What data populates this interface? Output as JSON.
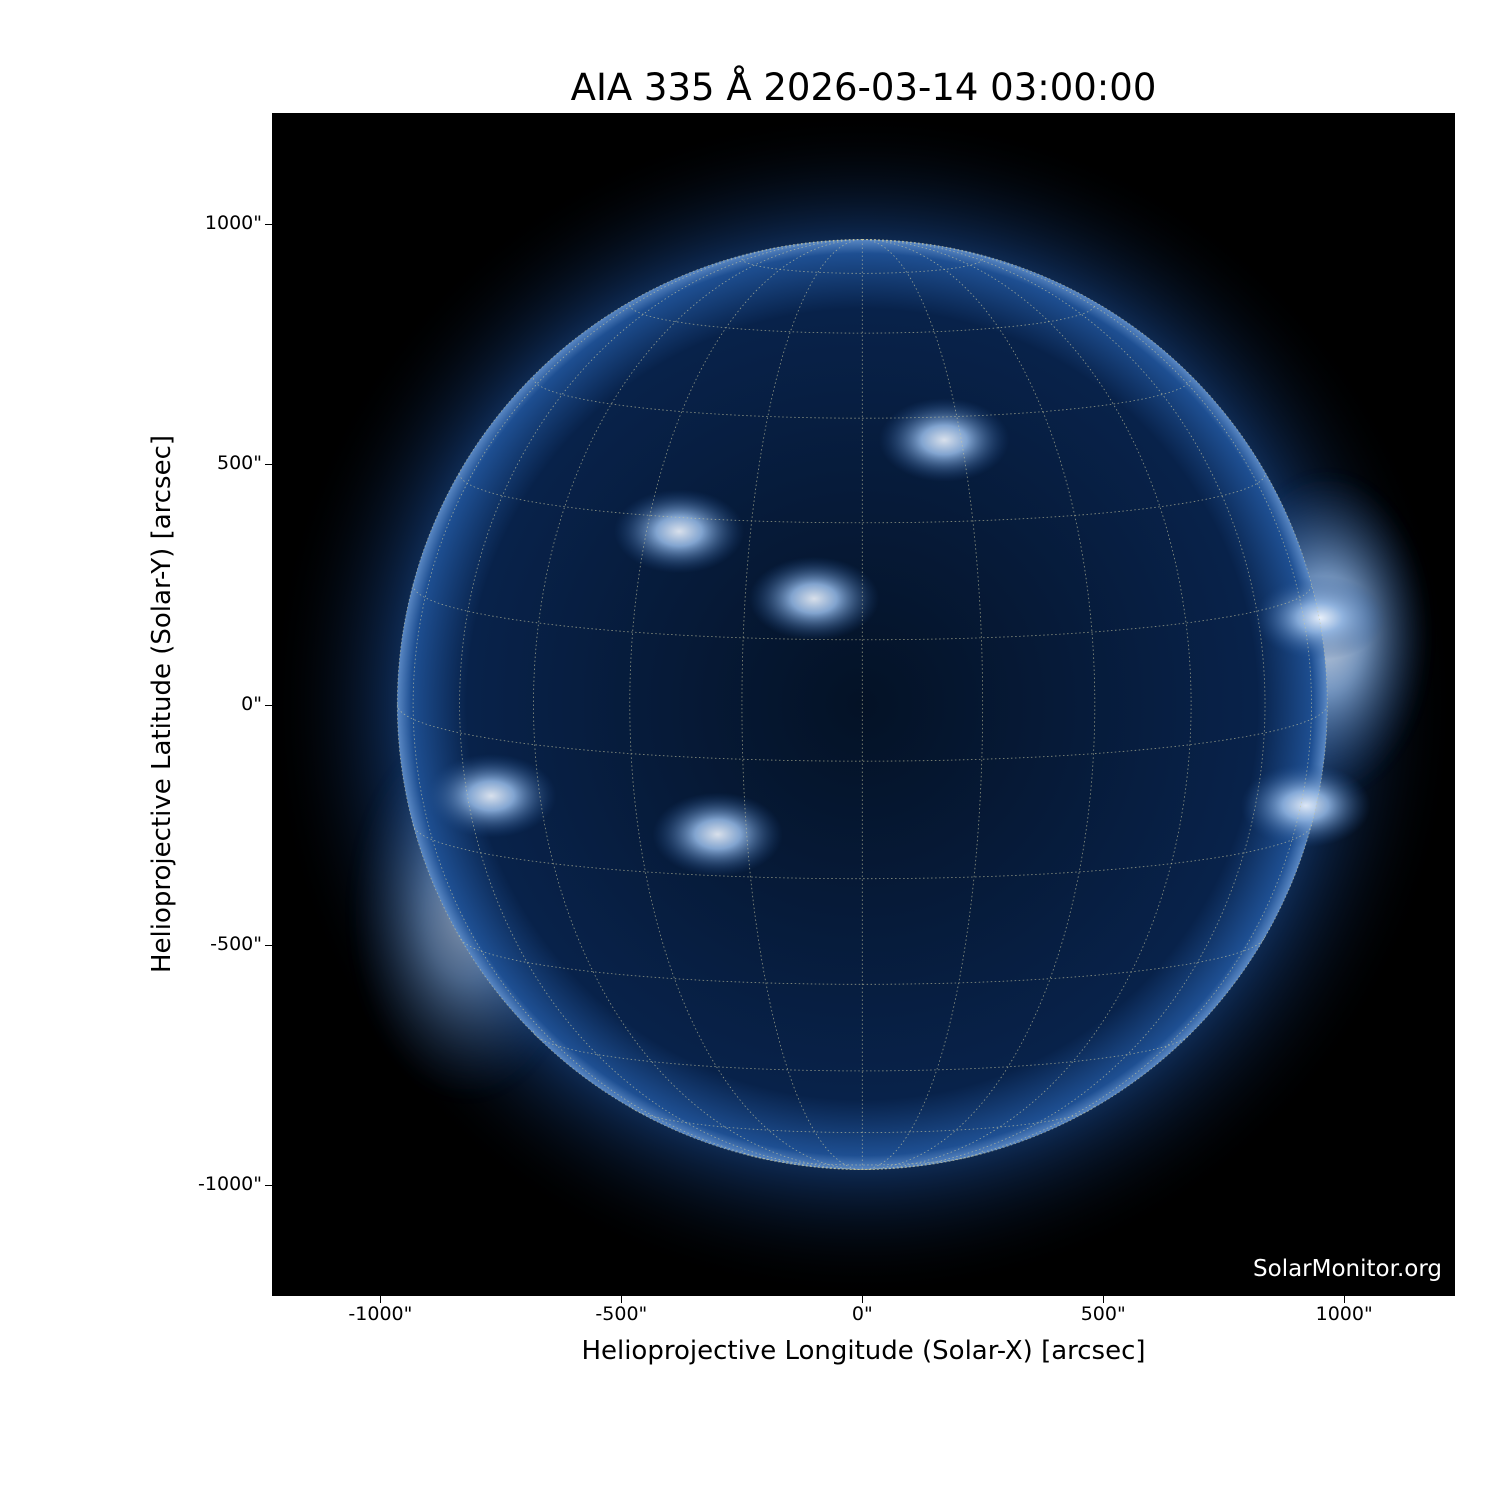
{
  "chart_data": {
    "type": "image",
    "title": "AIA 335 Å 2026-03-14 03:00:00",
    "xlabel": "Helioprojective Longitude (Solar-X) [arcsec]",
    "ylabel": "Helioprojective Latitude (Solar-Y) [arcsec]",
    "xlim": [
      -1225,
      1230
    ],
    "ylim": [
      -1230,
      1230
    ],
    "xticks": [
      -1000,
      -500,
      0,
      500,
      1000
    ],
    "xtick_labels": [
      "-1000\"",
      "-500\"",
      "0\"",
      "500\"",
      "1000\""
    ],
    "yticks": [
      1000,
      500,
      0,
      -500,
      -1000
    ],
    "ytick_labels": [
      "1000\"",
      "500\"",
      "0\"",
      "-500\"",
      "-1000\""
    ],
    "solar_radius_arcsec": 965,
    "grid": "heliographic, 15° spacing, dotted",
    "colormap": "sdoaia335",
    "colors": {
      "background": "#000000",
      "disk": "#0a2a5c",
      "bright": "#e8f2ff",
      "grid": "#c8c8a0"
    },
    "bright_regions_arcsec": [
      {
        "x": -380,
        "y": 360
      },
      {
        "x": -100,
        "y": 220
      },
      {
        "x": 170,
        "y": 550
      },
      {
        "x": -770,
        "y": -190
      },
      {
        "x": 950,
        "y": 180
      },
      {
        "x": 920,
        "y": -210
      },
      {
        "x": -300,
        "y": -270
      }
    ]
  },
  "watermark": "SolarMonitor.org"
}
